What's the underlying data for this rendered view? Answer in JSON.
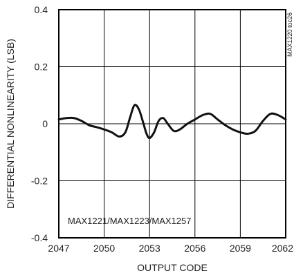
{
  "chart_data": {
    "type": "line",
    "title": "",
    "xlabel": "OUTPUT CODE",
    "ylabel": "DIFFERENTIAL NONLINEARITY (LSB)",
    "xlim": [
      2047,
      2062
    ],
    "ylim": [
      -0.4,
      0.4
    ],
    "x_ticks": [
      2047,
      2050,
      2053,
      2056,
      2059,
      2062
    ],
    "x_tick_labels": [
      "2047",
      "2050",
      "2053",
      "2056",
      "2059",
      "2062"
    ],
    "y_ticks": [
      0.4,
      0.2,
      0,
      -0.2,
      -0.4
    ],
    "y_tick_labels": [
      "0.4",
      "0.2",
      "0",
      "-0.2",
      "-0.4"
    ],
    "grid": true,
    "legend": "none",
    "annotation": "MAX1221/MAX1223/MAX1257",
    "side_note": "MAX1220 toc26",
    "line_color": "#111111",
    "series": [
      {
        "x": [
          2047.0,
          2047.5,
          2048.0,
          2048.5,
          2049.0,
          2049.5,
          2050.0,
          2050.5,
          2051.0,
          2051.4,
          2051.7,
          2052.0,
          2052.3,
          2052.6,
          2052.8,
          2053.0,
          2053.3,
          2053.6,
          2053.9,
          2054.2,
          2054.6,
          2055.0,
          2055.5,
          2056.0,
          2056.5,
          2057.0,
          2057.5,
          2058.0,
          2058.5,
          2059.0,
          2059.5,
          2060.0,
          2060.5,
          2061.0,
          2061.5,
          2062.0
        ],
        "y": [
          0.015,
          0.02,
          0.02,
          0.01,
          -0.005,
          -0.012,
          -0.02,
          -0.03,
          -0.045,
          -0.03,
          0.02,
          0.065,
          0.05,
          0.0,
          -0.035,
          -0.05,
          -0.03,
          0.01,
          0.02,
          0.0,
          -0.025,
          -0.02,
          0.0,
          0.015,
          0.03,
          0.035,
          0.015,
          -0.005,
          -0.02,
          -0.03,
          -0.035,
          -0.025,
          0.01,
          0.035,
          0.03,
          0.015
        ]
      }
    ]
  }
}
